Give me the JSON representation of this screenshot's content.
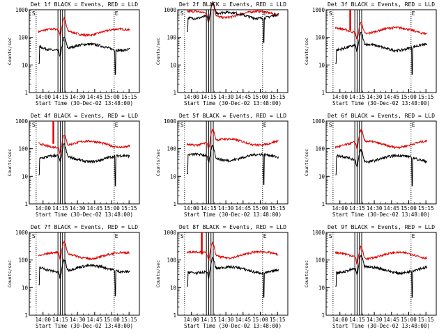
{
  "colors": {
    "events": "#000000",
    "lld": "#e00000",
    "axis": "#000000",
    "background": "#ffffff"
  },
  "chart_data": [
    {
      "type": "line",
      "title": "Det 1f BLACK = Events, RED = LLD",
      "xlabel": "Start Time (30-Dec-02 13:48:00)",
      "ylabel": "Counts/sec",
      "x_ticks": [
        "14:00",
        "14:15",
        "14:30",
        "14:45",
        "15:00",
        "15:15"
      ],
      "y_ticks": [
        "1",
        "10",
        "100",
        "1000"
      ],
      "yscale": "log",
      "ylim": [
        1,
        1000
      ],
      "events_level": 45,
      "lld_level": 160,
      "spike": "none"
    },
    {
      "type": "line",
      "title": "Det 2f BLACK = Events, RED = LLD",
      "xlabel": "Start Time (30-Dec-02 13:48:00)",
      "ylabel": "Counts/sec",
      "x_ticks": [
        "14:00",
        "14:15",
        "14:30",
        "14:45",
        "15:00",
        "15:15"
      ],
      "y_ticks": [
        "1",
        "10",
        "100",
        "1000"
      ],
      "yscale": "log",
      "ylim": [
        1,
        1000
      ],
      "events_level": 650,
      "lld_level": 700,
      "spike": "none"
    },
    {
      "type": "line",
      "title": "Det 3f BLACK = Events, RED = LLD",
      "xlabel": "Start Time (30-Dec-02 13:48:00)",
      "ylabel": "Counts/sec",
      "x_ticks": [
        "14:00",
        "14:15",
        "14:30",
        "14:45",
        "15:00",
        "15:15"
      ],
      "y_ticks": [
        "1",
        "10",
        "100",
        "1000"
      ],
      "yscale": "log",
      "ylim": [
        1,
        1000
      ],
      "events_level": 45,
      "lld_level": 180,
      "spike": "red"
    },
    {
      "type": "line",
      "title": "Det 4f BLACK = Events, RED = LLD",
      "xlabel": "Start Time (30-Dec-02 13:48:00)",
      "ylabel": "Counts/sec",
      "x_ticks": [
        "14:00",
        "14:15",
        "14:30",
        "14:45",
        "15:00",
        "15:15"
      ],
      "y_ticks": [
        "1",
        "10",
        "100",
        "1000"
      ],
      "yscale": "log",
      "ylim": [
        1,
        1000
      ],
      "events_level": 45,
      "lld_level": 150,
      "spike": "red"
    },
    {
      "type": "line",
      "title": "Det 5f BLACK = Events, RED = LLD",
      "xlabel": "Start Time (30-Dec-02 13:48:00)",
      "ylabel": "Counts/sec",
      "x_ticks": [
        "14:00",
        "14:15",
        "14:30",
        "14:45",
        "15:00",
        "15:15"
      ],
      "y_ticks": [
        "1",
        "10",
        "100",
        "1000"
      ],
      "yscale": "log",
      "ylim": [
        1,
        1000
      ],
      "events_level": 50,
      "lld_level": 180,
      "spike": "none"
    },
    {
      "type": "line",
      "title": "Det 6f BLACK = Events, RED = LLD",
      "xlabel": "Start Time (30-Dec-02 13:48:00)",
      "ylabel": "Counts/sec",
      "x_ticks": [
        "14:00",
        "14:15",
        "14:30",
        "14:45",
        "15:00",
        "15:15"
      ],
      "y_ticks": [
        "1",
        "10",
        "100",
        "1000"
      ],
      "yscale": "log",
      "ylim": [
        1,
        1000
      ],
      "events_level": 45,
      "lld_level": 150,
      "spike": "none"
    },
    {
      "type": "line",
      "title": "Det 7f BLACK = Events, RED = LLD",
      "xlabel": "Start Time (30-Dec-02 13:48:00)",
      "ylabel": "Counts/sec",
      "x_ticks": [
        "14:00",
        "14:15",
        "14:30",
        "14:45",
        "15:00",
        "15:15"
      ],
      "y_ticks": [
        "1",
        "10",
        "100",
        "1000"
      ],
      "yscale": "log",
      "ylim": [
        1,
        1000
      ],
      "events_level": 50,
      "lld_level": 150,
      "spike": "none"
    },
    {
      "type": "line",
      "title": "Det 8f BLACK = Events, RED = LLD",
      "xlabel": "Start Time (30-Dec-02 13:48:00)",
      "ylabel": "Counts/sec",
      "x_ticks": [
        "14:00",
        "14:15",
        "14:30",
        "14:45",
        "15:00",
        "15:15"
      ],
      "y_ticks": [
        "1",
        "10",
        "100",
        "1000"
      ],
      "yscale": "log",
      "ylim": [
        1,
        1000
      ],
      "events_level": 45,
      "lld_level": 160,
      "spike": "red"
    },
    {
      "type": "line",
      "title": "Det 9f BLACK = Events, RED = LLD",
      "xlabel": "Start Time (30-Dec-02 13:48:00)",
      "ylabel": "Counts/sec",
      "x_ticks": [
        "14:00",
        "14:15",
        "14:30",
        "14:45",
        "15:00",
        "15:15"
      ],
      "y_ticks": [
        "1",
        "10",
        "100",
        "1000"
      ],
      "yscale": "log",
      "ylim": [
        1,
        1000
      ],
      "events_level": 45,
      "lld_level": 150,
      "spike": "none"
    }
  ],
  "markers": {
    "start": "S",
    "end": "E"
  }
}
